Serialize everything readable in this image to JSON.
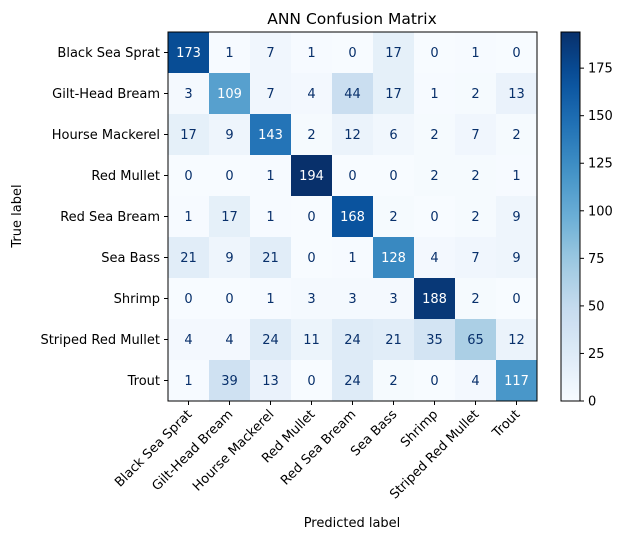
{
  "chart_data": {
    "type": "heatmap",
    "title": "ANN Confusion Matrix",
    "xlabel": "Predicted label",
    "ylabel": "True label",
    "classes": [
      "Black Sea Sprat",
      "Gilt-Head Bream",
      "Hourse Mackerel",
      "Red Mullet",
      "Red Sea Bream",
      "Sea Bass",
      "Shrimp",
      "Striped Red Mullet",
      "Trout"
    ],
    "matrix": [
      [
        173,
        1,
        7,
        1,
        0,
        17,
        0,
        1,
        0
      ],
      [
        3,
        109,
        7,
        4,
        44,
        17,
        1,
        2,
        13
      ],
      [
        17,
        9,
        143,
        2,
        12,
        6,
        2,
        7,
        2
      ],
      [
        0,
        0,
        1,
        194,
        0,
        0,
        2,
        2,
        1
      ],
      [
        1,
        17,
        1,
        0,
        168,
        2,
        0,
        2,
        9
      ],
      [
        21,
        9,
        21,
        0,
        1,
        128,
        4,
        7,
        9
      ],
      [
        0,
        0,
        1,
        3,
        3,
        3,
        188,
        2,
        0
      ],
      [
        4,
        4,
        24,
        11,
        24,
        21,
        35,
        65,
        12
      ],
      [
        1,
        39,
        13,
        0,
        24,
        2,
        0,
        4,
        117
      ]
    ],
    "colormap": "Blues",
    "colorbar": {
      "range": [
        0,
        194
      ],
      "ticks": [
        "0",
        "25",
        "50",
        "75",
        "100",
        "125",
        "150",
        "175"
      ]
    },
    "colors": {
      "low": "#f7fbff",
      "high": "#08306b",
      "text_dark": "#08306b",
      "text_light": "#ffffff"
    }
  }
}
